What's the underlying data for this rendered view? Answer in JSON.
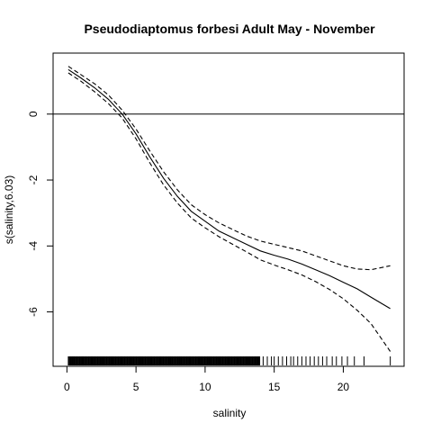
{
  "chart_data": {
    "type": "line",
    "title": "Pseudodiaptomus forbesi Adult  May - November",
    "xlabel": "salinity",
    "ylabel": "s(salinity,6.03)",
    "xlim": [
      -1.0,
      24.4
    ],
    "ylim": [
      -7.65,
      1.85
    ],
    "x_ticks": [
      0,
      5,
      10,
      15,
      20
    ],
    "x_tick_labels": [
      "0",
      "5",
      "10",
      "15",
      "20"
    ],
    "y_ticks": [
      0,
      -2,
      -4,
      -6
    ],
    "y_tick_labels": [
      "0",
      "-2",
      "-4",
      "-6"
    ],
    "reference_line_y": 0,
    "grid": false,
    "legend": "none",
    "series": [
      {
        "role": "fit",
        "style": "solid",
        "color": "#000000",
        "x": [
          0.1,
          1,
          2,
          3,
          4,
          5,
          6,
          7,
          8,
          9,
          10,
          11,
          12,
          13,
          14,
          15,
          16,
          17,
          18,
          19,
          20,
          21,
          22,
          23.4
        ],
        "values": [
          1.35,
          1.1,
          0.8,
          0.45,
          0.0,
          -0.6,
          -1.3,
          -1.95,
          -2.5,
          -2.95,
          -3.25,
          -3.55,
          -3.75,
          -3.95,
          -4.15,
          -4.28,
          -4.4,
          -4.55,
          -4.72,
          -4.9,
          -5.1,
          -5.3,
          -5.55,
          -5.9
        ]
      },
      {
        "role": "upper-band",
        "style": "dashed",
        "color": "#000000",
        "x": [
          0.1,
          1,
          2,
          3,
          4,
          5,
          6,
          7,
          8,
          9,
          10,
          11,
          12,
          13,
          14,
          15,
          16,
          17,
          18,
          19,
          20,
          21,
          22,
          23.4
        ],
        "values": [
          1.45,
          1.2,
          0.92,
          0.58,
          0.12,
          -0.45,
          -1.12,
          -1.75,
          -2.3,
          -2.75,
          -3.05,
          -3.3,
          -3.5,
          -3.7,
          -3.85,
          -3.95,
          -4.05,
          -4.15,
          -4.3,
          -4.45,
          -4.6,
          -4.7,
          -4.72,
          -4.6
        ]
      },
      {
        "role": "lower-band",
        "style": "dashed",
        "color": "#000000",
        "x": [
          0.1,
          1,
          2,
          3,
          4,
          5,
          6,
          7,
          8,
          9,
          10,
          11,
          12,
          13,
          14,
          15,
          16,
          17,
          18,
          19,
          20,
          21,
          22,
          23.4
        ],
        "values": [
          1.25,
          1.0,
          0.68,
          0.32,
          -0.12,
          -0.75,
          -1.48,
          -2.15,
          -2.7,
          -3.15,
          -3.45,
          -3.72,
          -3.95,
          -4.18,
          -4.42,
          -4.58,
          -4.72,
          -4.88,
          -5.08,
          -5.32,
          -5.6,
          -5.95,
          -6.35,
          -7.2
        ]
      }
    ],
    "rug": {
      "x_dense": [
        0.1,
        14.0
      ],
      "x_sparse": [
        14.2,
        14.5,
        14.8,
        15.0,
        15.3,
        15.6,
        15.9,
        16.2,
        16.4,
        16.7,
        17.0,
        17.3,
        17.6,
        17.9,
        18.2,
        18.5,
        18.8,
        19.2,
        19.5,
        19.9,
        20.3,
        20.8,
        21.5,
        23.4
      ]
    }
  }
}
